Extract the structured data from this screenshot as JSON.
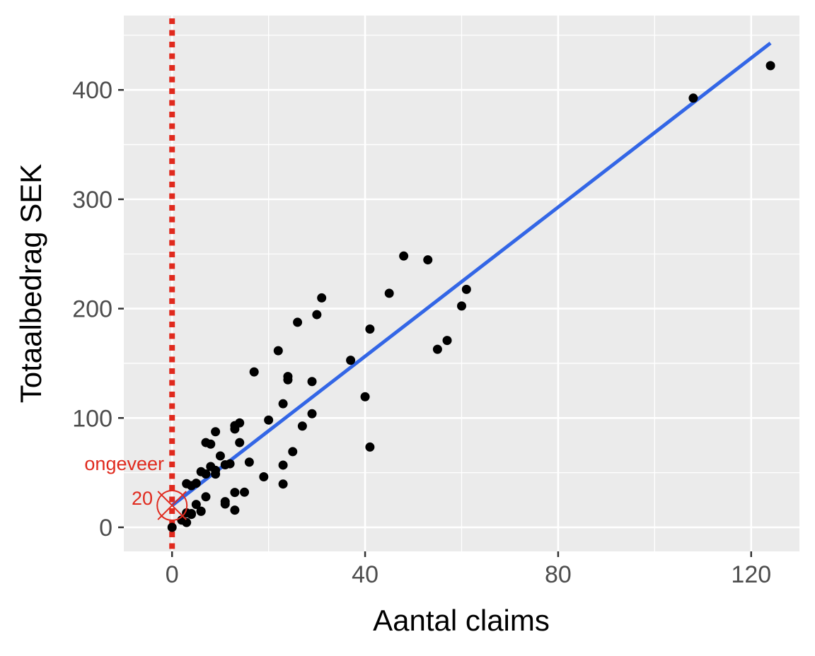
{
  "chart_data": {
    "type": "scatter",
    "title": "",
    "xlabel": "Aantal claims",
    "ylabel": "Totaalbedrag SEK",
    "xlim": [
      -10,
      130
    ],
    "ylim": [
      -22,
      468
    ],
    "x_ticks": [
      0,
      40,
      80,
      120
    ],
    "y_ticks": [
      0,
      100,
      200,
      300,
      400
    ],
    "x_tick_labels": [
      "0",
      "40",
      "80",
      "120"
    ],
    "y_tick_labels": [
      "0",
      "100",
      "200",
      "300",
      "400"
    ],
    "grid": true,
    "background": "#ebebeb",
    "point_color": "#000000",
    "points": [
      [
        108,
        392.5
      ],
      [
        19,
        46.2
      ],
      [
        13,
        15.7
      ],
      [
        124,
        422.2
      ],
      [
        40,
        119.4
      ],
      [
        57,
        170.9
      ],
      [
        23,
        56.9
      ],
      [
        14,
        77.5
      ],
      [
        45,
        214
      ],
      [
        10,
        65.3
      ],
      [
        5,
        20.9
      ],
      [
        48,
        248.1
      ],
      [
        11,
        23.5
      ],
      [
        23,
        39.6
      ],
      [
        7,
        48.8
      ],
      [
        2,
        6.6
      ],
      [
        24,
        134.9
      ],
      [
        6,
        50.9
      ],
      [
        3,
        4.4
      ],
      [
        23,
        113
      ],
      [
        6,
        14.8
      ],
      [
        9,
        48.7
      ],
      [
        9,
        52.1
      ],
      [
        3,
        13.2
      ],
      [
        29,
        103.9
      ],
      [
        7,
        77.5
      ],
      [
        4,
        11.8
      ],
      [
        20,
        98.1
      ],
      [
        7,
        27.9
      ],
      [
        4,
        38.1
      ],
      [
        0,
        0
      ],
      [
        25,
        69.2
      ],
      [
        6,
        14.6
      ],
      [
        5,
        40.3
      ],
      [
        22,
        161.5
      ],
      [
        11,
        57.2
      ],
      [
        61,
        217.6
      ],
      [
        12,
        58.1
      ],
      [
        4,
        12.6
      ],
      [
        16,
        59.6
      ],
      [
        13,
        89.9
      ],
      [
        60,
        202.4
      ],
      [
        41,
        181.3
      ],
      [
        37,
        152.8
      ],
      [
        55,
        162.8
      ],
      [
        41,
        73.4
      ],
      [
        11,
        21.3
      ],
      [
        27,
        92.6
      ],
      [
        8,
        76.1
      ],
      [
        3,
        39.9
      ],
      [
        17,
        142.1
      ],
      [
        13,
        93
      ],
      [
        13,
        31.9
      ],
      [
        15,
        32.1
      ],
      [
        8,
        55.6
      ],
      [
        29,
        133.3
      ],
      [
        30,
        194.5
      ],
      [
        24,
        137.9
      ],
      [
        9,
        87.4
      ],
      [
        31,
        209.8
      ],
      [
        14,
        95.5
      ],
      [
        53,
        244.6
      ],
      [
        26,
        187.5
      ]
    ],
    "regression_line": {
      "intercept": 19.99,
      "slope": 3.41,
      "x_range": [
        0,
        124
      ],
      "color": "#3366e6"
    },
    "annotations": {
      "vertical_line": {
        "x": 0,
        "style": "dotted",
        "color": "#e02a1e"
      },
      "marker": {
        "x": 0,
        "y": 20,
        "shape": "circle-x",
        "color": "#e02a1e"
      },
      "label_top": "ongeveer",
      "label_value": "20"
    }
  }
}
